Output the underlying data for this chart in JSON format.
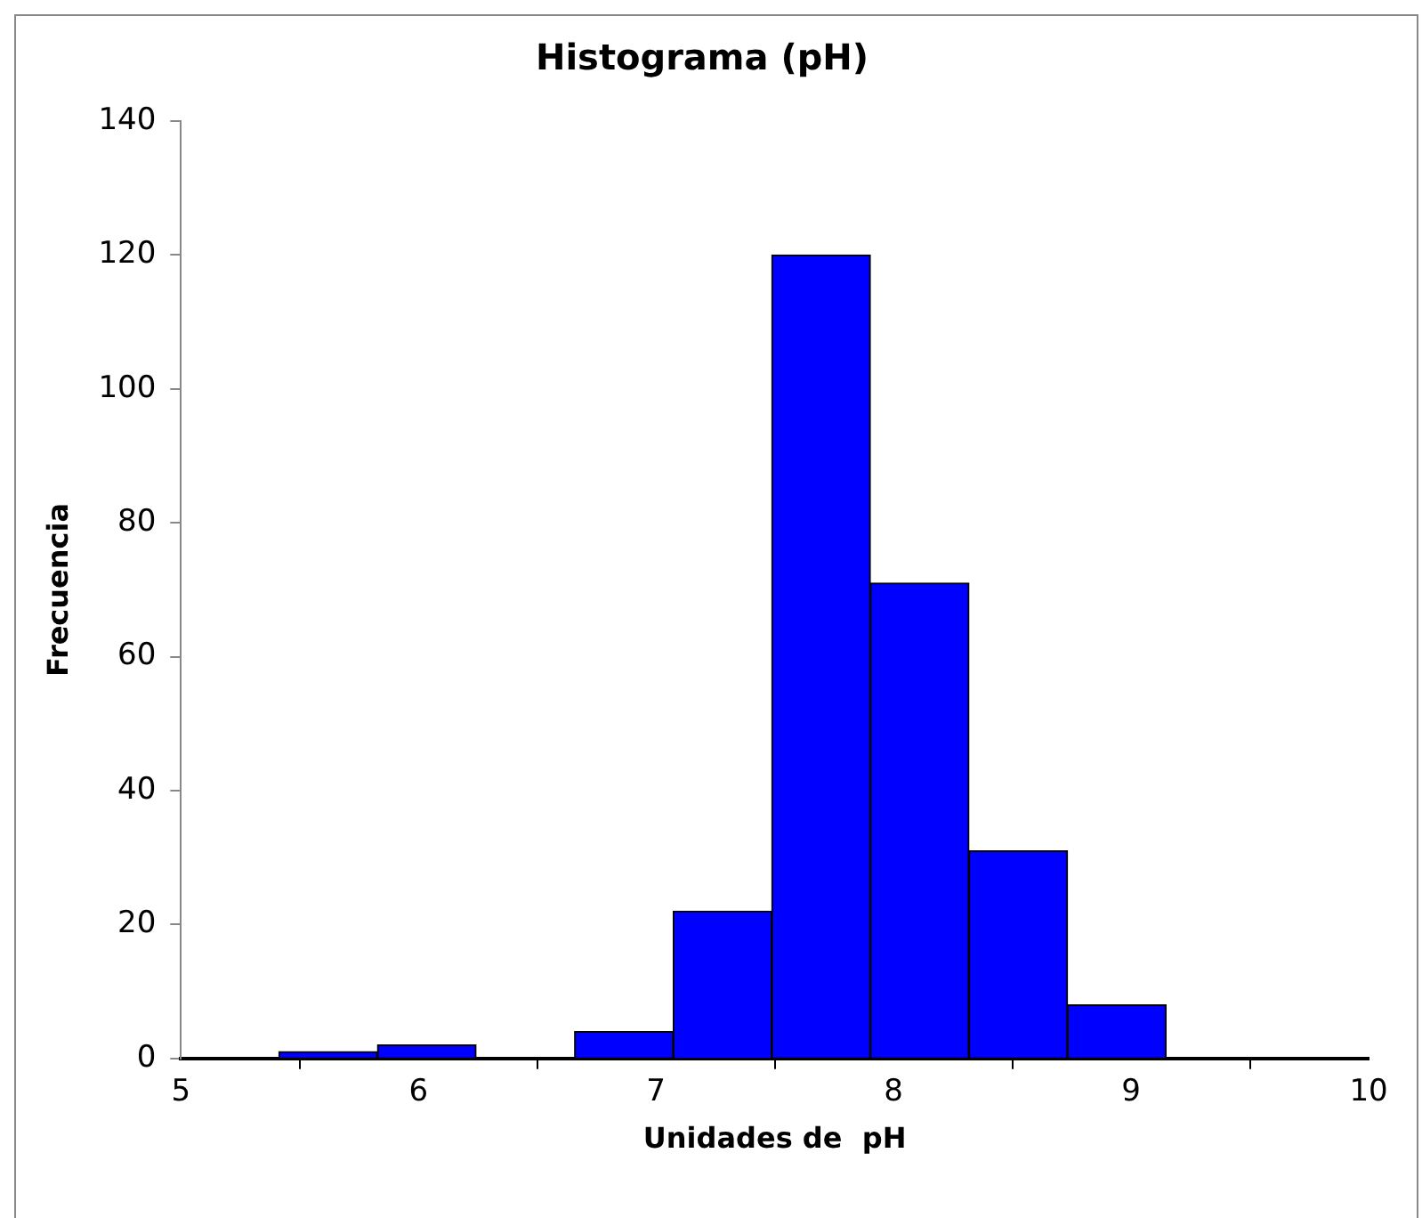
{
  "chart_data": {
    "type": "histogram",
    "title": "Histograma (pH)",
    "xlabel": "Unidades de  pH",
    "ylabel": "Frecuencia",
    "bins": [
      5.41,
      5.83,
      6.24,
      6.66,
      7.07,
      7.49,
      7.9,
      8.32,
      8.73,
      9.15
    ],
    "values": [
      1,
      2,
      0,
      4,
      22,
      120,
      71,
      31,
      8
    ],
    "color": "#0000ff",
    "xlim": [
      5,
      10
    ],
    "xticks": [
      5,
      6,
      7,
      8,
      9,
      10
    ],
    "ylim": [
      0,
      140
    ],
    "yticks": [
      0,
      20,
      40,
      60,
      80,
      100,
      120,
      140
    ],
    "grid": false,
    "legend": false
  }
}
